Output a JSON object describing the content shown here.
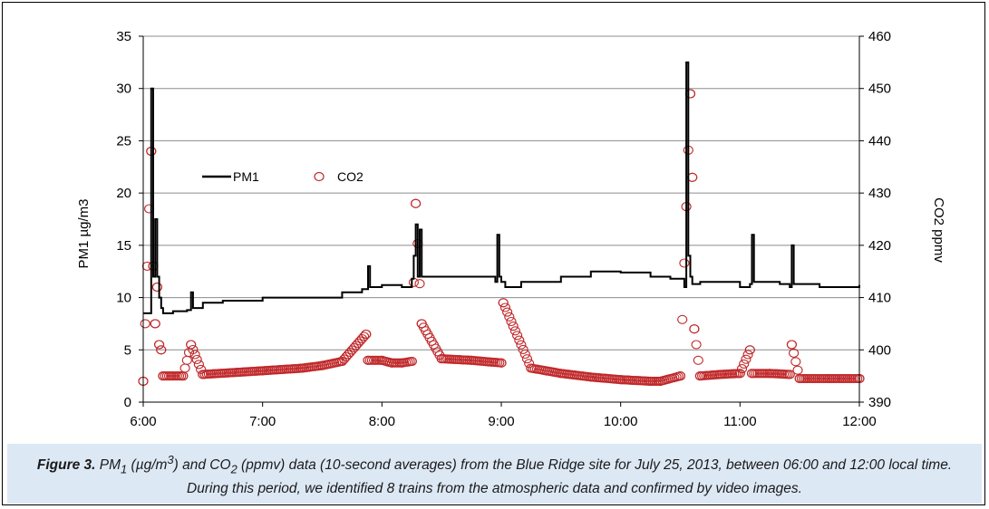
{
  "chart_data": {
    "type": "line",
    "title": "",
    "xlabel": "",
    "ylabel": "PM1 µg/m3",
    "ylabel_right": "CO2 ppmv",
    "x_ticks": [
      "6:00",
      "7:00",
      "8:00",
      "9:00",
      "10:00",
      "11:00",
      "12:00"
    ],
    "xlim_hours": [
      6.0,
      12.0
    ],
    "ylim": [
      0,
      35
    ],
    "ylim_right": [
      390,
      460
    ],
    "y_ticks": [
      "0",
      "5",
      "10",
      "15",
      "20",
      "25",
      "30",
      "35"
    ],
    "y_ticks_right": [
      "390",
      "400",
      "410",
      "420",
      "430",
      "440",
      "450",
      "460"
    ],
    "grid": "horizontal",
    "legend_position": "upper-left inside",
    "series": [
      {
        "name": "PM1",
        "axis": "left",
        "style": "line",
        "color": "#000000",
        "x": [
          "6:00",
          "6:03",
          "6:04",
          "6:05",
          "6:06",
          "6:07",
          "6:08",
          "6:09",
          "6:10",
          "6:12",
          "6:15",
          "6:22",
          "6:24",
          "6:25",
          "6:27",
          "6:30",
          "6:40",
          "7:00",
          "7:20",
          "7:40",
          "7:50",
          "7:53",
          "7:54",
          "7:56",
          "8:00",
          "8:10",
          "8:15",
          "8:16",
          "8:17",
          "8:18",
          "8:19",
          "8:20",
          "8:22",
          "8:25",
          "8:40",
          "8:57",
          "8:58",
          "8:59",
          "9:00",
          "9:02",
          "9:10",
          "9:30",
          "9:45",
          "9:50",
          "10:00",
          "10:15",
          "10:25",
          "10:32",
          "10:33",
          "10:34",
          "10:35",
          "10:36",
          "10:40",
          "10:50",
          "11:00",
          "11:05",
          "11:06",
          "11:07",
          "11:20",
          "11:25",
          "11:26",
          "11:27",
          "11:40",
          "12:00"
        ],
        "y": [
          8.5,
          8.5,
          30.0,
          12.0,
          17.5,
          12.0,
          10.0,
          9.0,
          8.5,
          8.5,
          8.7,
          8.8,
          10.5,
          9.0,
          9.0,
          9.5,
          9.7,
          10.0,
          10.0,
          10.5,
          10.8,
          13.0,
          11.0,
          11.0,
          11.2,
          11.0,
          11.8,
          14.0,
          17.0,
          12.0,
          16.5,
          12.0,
          12.0,
          12.0,
          12.0,
          11.5,
          16.0,
          12.0,
          11.5,
          11.0,
          11.5,
          12.0,
          12.5,
          12.5,
          12.4,
          12.0,
          11.8,
          11.0,
          32.5,
          14.0,
          12.0,
          11.3,
          11.5,
          11.5,
          11.0,
          11.3,
          16.0,
          11.5,
          11.3,
          11.0,
          15.0,
          11.3,
          11.0,
          11.2
        ]
      },
      {
        "name": "CO2",
        "axis": "right",
        "style": "open-circle",
        "color": "#c0282a",
        "x": [
          "6:00",
          "6:04",
          "6:05",
          "6:06",
          "6:07",
          "6:08",
          "6:09",
          "6:10",
          "6:20",
          "6:24",
          "6:30",
          "7:00",
          "7:20",
          "7:30",
          "7:40",
          "7:52",
          "7:53",
          "8:00",
          "8:05",
          "8:10",
          "8:15",
          "8:17",
          "8:20",
          "8:30",
          "8:45",
          "9:00",
          "9:01",
          "9:15",
          "9:30",
          "9:45",
          "10:00",
          "10:15",
          "10:20",
          "10:30",
          "10:35",
          "10:36",
          "10:37",
          "10:40",
          "10:50",
          "11:00",
          "11:05",
          "11:06",
          "11:15",
          "11:25",
          "11:26",
          "11:30",
          "11:45",
          "12:00"
        ],
        "y": [
          394.0,
          438.0,
          416.0,
          405.0,
          412.0,
          401.0,
          400.0,
          395.0,
          395.0,
          401.0,
          395.3,
          396.0,
          396.5,
          397.0,
          397.8,
          403.0,
          398.0,
          398.0,
          397.5,
          397.5,
          397.8,
          428.0,
          405.0,
          398.3,
          398.0,
          397.5,
          409.0,
          396.5,
          395.5,
          394.8,
          394.3,
          394.0,
          394.0,
          395.0,
          449.0,
          433.0,
          404.0,
          395.0,
          395.3,
          395.5,
          400.0,
          395.5,
          395.5,
          395.3,
          401.0,
          394.5,
          394.5,
          394.5
        ]
      }
    ]
  },
  "caption": {
    "label": "Figure 3.",
    "text_a": " PM",
    "sub_1": "1",
    "text_b": " (µg/m",
    "sup_3": "3",
    "text_c": ") and CO",
    "sub_2": "2",
    "text_d": " (ppmv) data (10-second averages) from the Blue Ridge site for July 25, 2013, between 06:00 and 12:00 local time. During this period, we identified 8 trains from the atmospheric data and confirmed by video images."
  }
}
